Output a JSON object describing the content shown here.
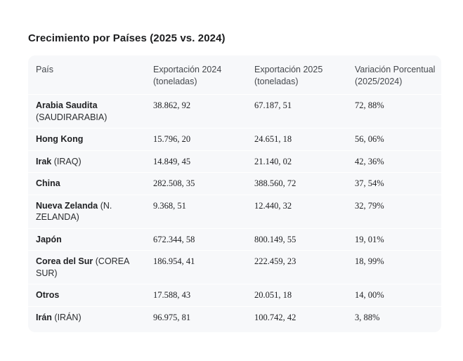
{
  "page": {
    "title": "Crecimiento por Países (2025 vs. 2024)"
  },
  "colors": {
    "page_background": "#ffffff",
    "card_background": "#f7f8fa",
    "row_separator": "#ffffff",
    "title_text": "#1c1d1f",
    "header_text": "#45484d",
    "body_text": "#202124"
  },
  "table": {
    "columns": [
      "País",
      "Exportación 2024 (toneladas)",
      "Exportación 2025 (toneladas)",
      "Variación Porcentual (2025/2024)"
    ],
    "rows": [
      {
        "pais": "Arabia Saudita",
        "alias": "(SAUDIRARABIA)",
        "exportacion_2024": "38.862, 92",
        "exportacion_2025": "67.187, 51",
        "variacion": "72, 88%"
      },
      {
        "pais": "Hong Kong",
        "alias": "",
        "exportacion_2024": "15.796, 20",
        "exportacion_2025": "24.651, 18",
        "variacion": "56, 06%"
      },
      {
        "pais": "Irak",
        "alias": "(IRAQ)",
        "exportacion_2024": "14.849, 45",
        "exportacion_2025": "21.140, 02",
        "variacion": "42, 36%"
      },
      {
        "pais": "China",
        "alias": "",
        "exportacion_2024": "282.508, 35",
        "exportacion_2025": "388.560, 72",
        "variacion": "37, 54%"
      },
      {
        "pais": "Nueva Zelanda",
        "alias": "(N. ZELANDA)",
        "exportacion_2024": "9.368, 51",
        "exportacion_2025": "12.440, 32",
        "variacion": "32, 79%"
      },
      {
        "pais": "Japón",
        "alias": "",
        "exportacion_2024": "672.344, 58",
        "exportacion_2025": "800.149, 55",
        "variacion": "19, 01%"
      },
      {
        "pais": "Corea del Sur",
        "alias": "(COREA SUR)",
        "exportacion_2024": "186.954, 41",
        "exportacion_2025": "222.459, 23",
        "variacion": "18, 99%"
      },
      {
        "pais": "Otros",
        "alias": "",
        "exportacion_2024": "17.588, 43",
        "exportacion_2025": "20.051, 18",
        "variacion": "14, 00%"
      },
      {
        "pais": "Irán",
        "alias": "(IRÁN)",
        "exportacion_2024": "96.975, 81",
        "exportacion_2025": "100.742, 42",
        "variacion": "3, 88%"
      }
    ]
  }
}
